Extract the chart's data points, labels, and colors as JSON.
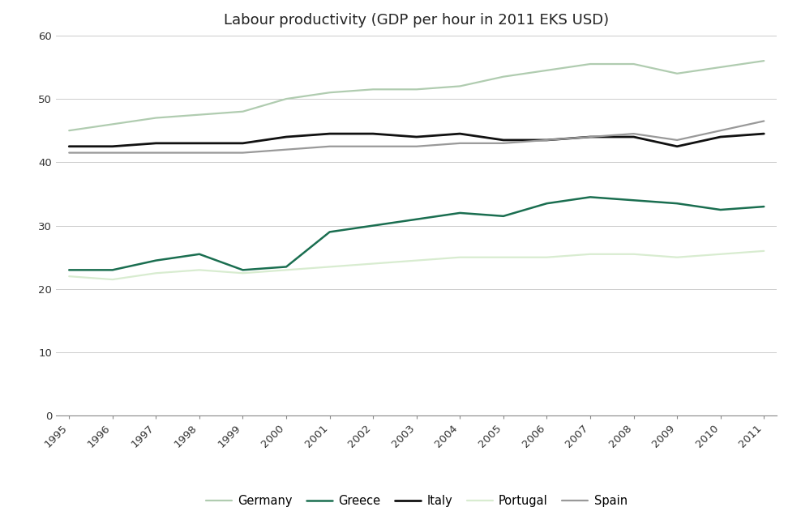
{
  "title": "Labour productivity (GDP per hour in 2011 EKS USD)",
  "years": [
    1995,
    1996,
    1997,
    1998,
    1999,
    2000,
    2001,
    2002,
    2003,
    2004,
    2005,
    2006,
    2007,
    2008,
    2009,
    2010,
    2011
  ],
  "series": {
    "Germany": {
      "values": [
        45.0,
        46.0,
        47.0,
        47.5,
        48.0,
        50.0,
        51.0,
        51.5,
        51.5,
        52.0,
        53.5,
        54.5,
        55.5,
        55.5,
        54.0,
        55.0,
        56.0
      ],
      "color": "#b0ccb0",
      "linewidth": 1.6
    },
    "Greece": {
      "values": [
        23.0,
        23.0,
        24.5,
        25.5,
        23.0,
        23.5,
        29.0,
        30.0,
        31.0,
        32.0,
        31.5,
        33.5,
        34.5,
        34.0,
        33.5,
        32.5,
        33.0
      ],
      "color": "#1a6e50",
      "linewidth": 1.8
    },
    "Italy": {
      "values": [
        42.5,
        42.5,
        43.0,
        43.0,
        43.0,
        44.0,
        44.5,
        44.5,
        44.0,
        44.5,
        43.5,
        43.5,
        44.0,
        44.0,
        42.5,
        44.0,
        44.5
      ],
      "color": "#111111",
      "linewidth": 2.0
    },
    "Portugal": {
      "values": [
        22.0,
        21.5,
        22.5,
        23.0,
        22.5,
        23.0,
        23.5,
        24.0,
        24.5,
        25.0,
        25.0,
        25.0,
        25.5,
        25.5,
        25.0,
        25.5,
        26.0
      ],
      "color": "#d8ecd0",
      "linewidth": 1.6
    },
    "Spain": {
      "values": [
        41.5,
        41.5,
        41.5,
        41.5,
        41.5,
        42.0,
        42.5,
        42.5,
        42.5,
        43.0,
        43.0,
        43.5,
        44.0,
        44.5,
        43.5,
        45.0,
        46.5
      ],
      "color": "#999999",
      "linewidth": 1.6
    }
  },
  "ylim": [
    0,
    60
  ],
  "yticks": [
    0,
    10,
    20,
    30,
    40,
    50,
    60
  ],
  "legend_order": [
    "Germany",
    "Greece",
    "Italy",
    "Portugal",
    "Spain"
  ],
  "background_color": "#ffffff",
  "grid_color": "#cccccc",
  "tick_label_fontsize": 9.5,
  "title_fontsize": 13,
  "legend_fontsize": 10.5
}
